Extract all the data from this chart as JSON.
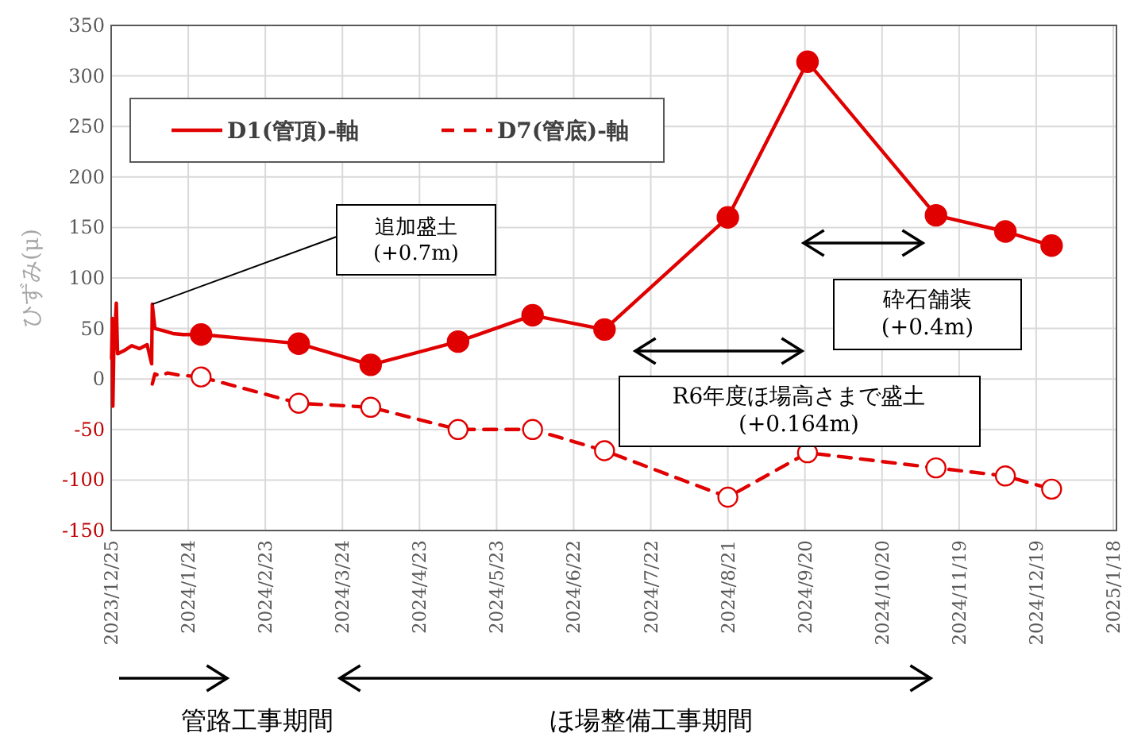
{
  "chart_data": {
    "type": "line",
    "ylabel": "ひずみ(μ)",
    "xlim": [
      "2023-12-25",
      "2025-01-18"
    ],
    "xticks": [
      {
        "value": "2023-12-25",
        "label": "2023/12/25"
      },
      {
        "value": "2024-01-24",
        "label": "2024/1/24"
      },
      {
        "value": "2024-02-23",
        "label": "2024/2/23"
      },
      {
        "value": "2024-03-24",
        "label": "2024/3/24"
      },
      {
        "value": "2024-04-23",
        "label": "2024/4/23"
      },
      {
        "value": "2024-05-23",
        "label": "2024/5/23"
      },
      {
        "value": "2024-06-22",
        "label": "2024/6/22"
      },
      {
        "value": "2024-07-22",
        "label": "2024/7/22"
      },
      {
        "value": "2024-08-21",
        "label": "2024/8/21"
      },
      {
        "value": "2024-09-20",
        "label": "2024/9/20"
      },
      {
        "value": "2024-10-20",
        "label": "2024/10/20"
      },
      {
        "value": "2024-11-19",
        "label": "2024/11/19"
      },
      {
        "value": "2024-12-19",
        "label": "2024/12/19"
      },
      {
        "value": "2025-01-18",
        "label": "2025/1/18"
      }
    ],
    "ylim": [
      -150,
      350
    ],
    "yticks": [
      -150,
      -100,
      -50,
      0,
      50,
      100,
      150,
      200,
      250,
      300,
      350
    ],
    "grid": true,
    "legend": "top left",
    "series": [
      {
        "color": "#e00000",
        "marker": "none",
        "line_style": "solid",
        "x": [
          "2023-12-25T04:00",
          "2023-12-25T10:00",
          "2023-12-25T16:00",
          "2023-12-26",
          "2023-12-27",
          "2023-12-27T12:00",
          "2023-12-30",
          "2024-01-02",
          "2024-01-05",
          "2024-01-08",
          "2024-01-09T18:00",
          "2024-01-10",
          "2024-01-11",
          "2024-01-14",
          "2024-01-18",
          "2024-01-22",
          "2024-01-29"
        ],
        "values": [
          20,
          60,
          -27,
          25,
          75,
          25,
          28,
          33,
          30,
          34,
          15,
          74,
          50,
          48,
          45,
          44,
          44
        ]
      },
      {
        "name": "D1(管頂)-軸",
        "color": "#e00000",
        "marker": "circle",
        "line_style": "solid",
        "x": [
          "2024-01-29",
          "2024-03-07",
          "2024-04-04",
          "2024-05-08",
          "2024-06-06",
          "2024-07-04",
          "2024-08-21",
          "2024-09-21",
          "2024-11-10",
          "2024-12-07",
          "2024-12-25"
        ],
        "values": [
          44,
          35,
          14,
          37,
          63,
          49,
          160,
          314,
          162,
          146,
          132
        ]
      },
      {
        "color": "#e00000",
        "marker": "none",
        "line_style": "dashed",
        "x": [
          "2024-01-10",
          "2024-01-11",
          "2024-01-13",
          "2024-01-16",
          "2024-01-20",
          "2024-01-29"
        ],
        "values": [
          -5,
          5,
          3,
          6,
          4,
          2
        ]
      },
      {
        "name": "D7(管底)-軸",
        "color": "#e00000",
        "marker": "circle",
        "line_style": "dashed",
        "x": [
          "2024-01-29",
          "2024-03-07",
          "2024-04-04",
          "2024-05-08",
          "2024-06-06",
          "2024-07-04",
          "2024-08-21",
          "2024-09-21",
          "2024-11-10",
          "2024-12-07",
          "2024-12-25"
        ],
        "values": [
          2,
          -24,
          -28,
          -50,
          -50,
          -71,
          -117,
          -73,
          -88,
          -96,
          -109
        ]
      }
    ],
    "annotations": [
      "追加盛土\n(+0.7m)",
      "R6年度ほ場高さまで盛土\n(+0.164m)",
      "砕石舗装\n(+0.4m)",
      "管路工事期間",
      "ほ場整備工事期間"
    ]
  }
}
